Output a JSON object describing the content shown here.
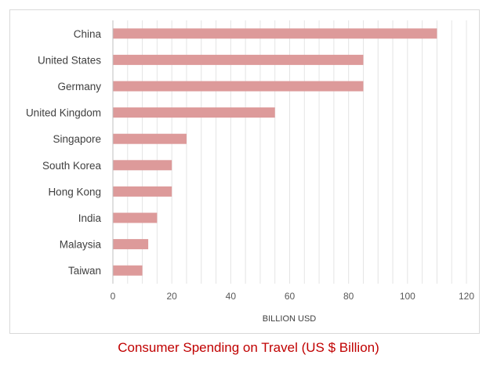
{
  "chart_data": {
    "type": "bar",
    "orientation": "horizontal",
    "categories": [
      "China",
      "United States",
      "Germany",
      "United Kingdom",
      "Singapore",
      "South Korea",
      "Hong Kong",
      "India",
      "Malaysia",
      "Taiwan"
    ],
    "values": [
      110,
      85,
      85,
      55,
      25,
      20,
      20,
      15,
      12,
      10
    ],
    "xlabel": "BILLION USD",
    "ylabel": "",
    "xlim": [
      0,
      120
    ],
    "xticks": [
      "0",
      "20",
      "40",
      "60",
      "80",
      "100",
      "120"
    ],
    "grid": "vertical",
    "legend": "none",
    "bar_color": "#dd9a9a"
  },
  "caption": "Consumer Spending on Travel (US $ Billion)",
  "colors": {
    "caption": "#c00000",
    "grid": "#e4e4e4",
    "axis": "#bfbfbf"
  }
}
